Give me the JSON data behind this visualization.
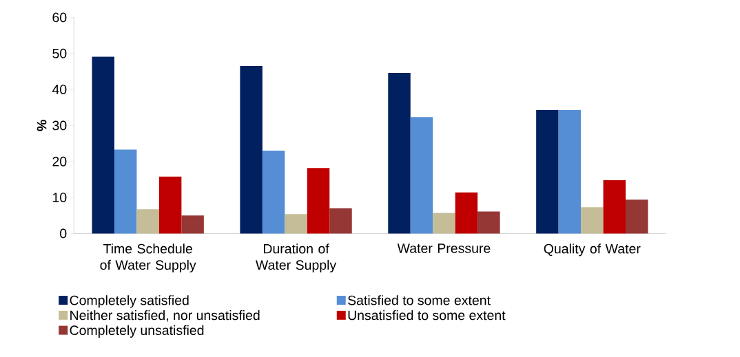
{
  "chart_data": {
    "type": "bar",
    "ylabel": "%",
    "categories": [
      "Time Schedule of Water Supply",
      "Duration of Water Supply",
      "Water Pressure",
      "Quality of Water"
    ],
    "series": [
      {
        "name": "Completely satisfied",
        "color": "#002060",
        "values": [
          49.1,
          46.5,
          44.6,
          34.3
        ]
      },
      {
        "name": "Satisfied to some extent",
        "color": "#558ed5",
        "values": [
          23.3,
          23.0,
          32.3,
          34.3
        ]
      },
      {
        "name": "Neither satisfied, nor unsatisfied",
        "color": "#c4bd97",
        "values": [
          6.7,
          5.4,
          5.7,
          7.3
        ]
      },
      {
        "name": "Unsatisfied to some extent",
        "color": "#c00000",
        "values": [
          15.8,
          18.2,
          11.4,
          14.8
        ]
      },
      {
        "name": "Completely unsatisfied",
        "color": "#953735",
        "values": [
          5.0,
          7.0,
          6.1,
          9.4
        ]
      }
    ],
    "ylim": [
      0,
      60
    ],
    "yticks": [
      0,
      10,
      20,
      30,
      40,
      50,
      60
    ],
    "legend": "bottom"
  }
}
